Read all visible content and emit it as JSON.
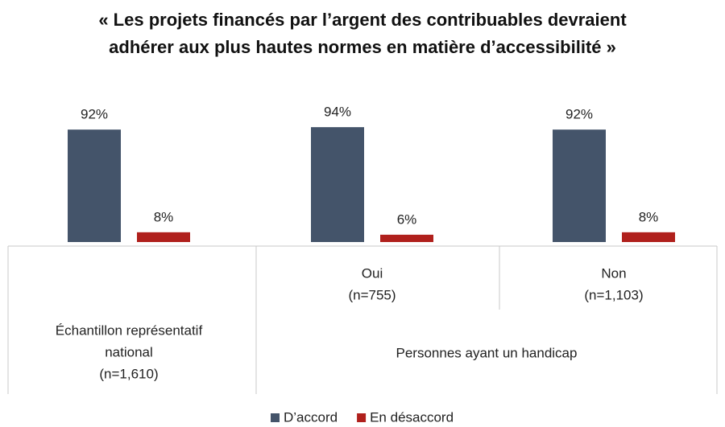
{
  "chart_data": {
    "type": "bar",
    "title": "« Les projets financés par l’argent des contribuables devraient adhérer aux plus hautes normes en matière d’accessibilité »",
    "categories": [
      [
        "Échantillon représentatif",
        "national",
        "(n=1,610)"
      ],
      [
        "Oui",
        "(n=755)"
      ],
      [
        "Non",
        "(n=1,103)"
      ]
    ],
    "group_label": "Personnes ayant un handicap",
    "series": [
      {
        "name": "D’accord",
        "color": "#44546a",
        "values": [
          92,
          94,
          92
        ],
        "value_labels": [
          "92%",
          "94%",
          "92%"
        ]
      },
      {
        "name": "En désaccord",
        "color": "#b0201c",
        "values": [
          8,
          6,
          8
        ],
        "value_labels": [
          "8%",
          "6%",
          "8%"
        ]
      }
    ],
    "ylim": [
      0,
      100
    ],
    "legend": "bottom"
  }
}
